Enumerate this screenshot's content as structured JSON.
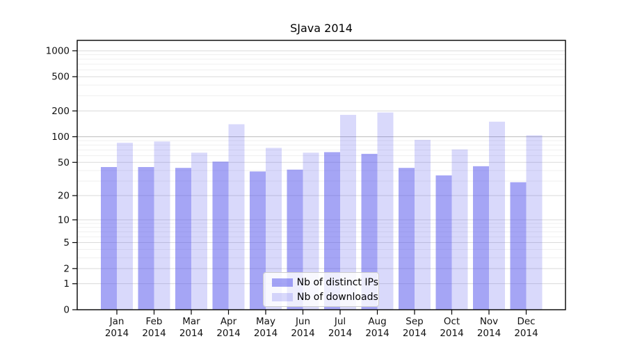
{
  "title": "SJava 2014",
  "chart_data": {
    "type": "bar",
    "title": "SJava 2014",
    "x_axis": {
      "months": [
        "Jan",
        "Feb",
        "Mar",
        "Apr",
        "May",
        "Jun",
        "Jul",
        "Aug",
        "Sep",
        "Oct",
        "Nov",
        "Dec"
      ],
      "year": "2014"
    },
    "y_axis": {
      "scale": "log(1+x)",
      "major_ticks": [
        0,
        1,
        2,
        5,
        10,
        20,
        50,
        100,
        200,
        500,
        1000
      ],
      "minor_gridlines": [
        3,
        4,
        6,
        7,
        8,
        9,
        30,
        40,
        60,
        70,
        80,
        90,
        300,
        400,
        600,
        700,
        800,
        900
      ],
      "top_value": 1450
    },
    "series": [
      {
        "name": "Nb of distinct IPs",
        "color": "#a8a8f5",
        "fill": "rgba(82,82,235,0.52)",
        "values": [
          44,
          44,
          43,
          51,
          39,
          41,
          66,
          63,
          43,
          35,
          45,
          29
        ]
      },
      {
        "name": "Nb of downloads",
        "color": "#dcdcf9",
        "fill": "rgba(82,82,235,0.22)",
        "values": [
          85,
          88,
          65,
          140,
          74,
          65,
          180,
          192,
          92,
          71,
          150,
          104
        ]
      }
    ],
    "legend": {
      "position": "bottom-center",
      "entries": [
        "Nb of distinct IPs",
        "Nb of downloads"
      ]
    },
    "grid": true
  }
}
